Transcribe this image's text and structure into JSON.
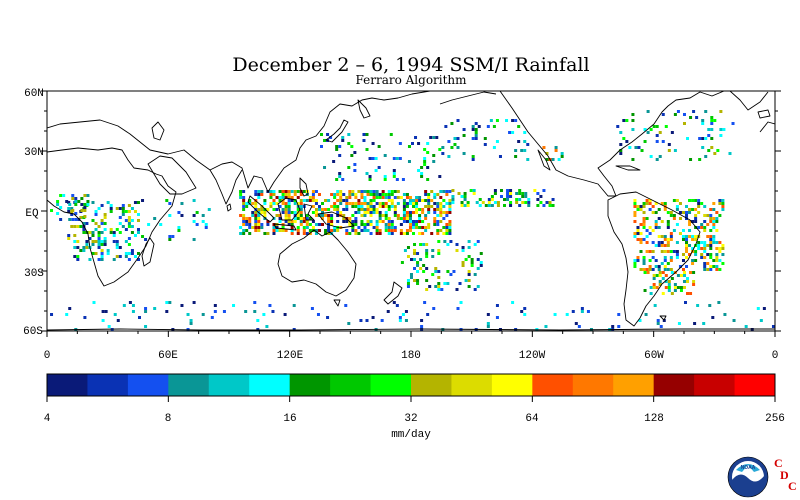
{
  "header": {
    "title": "December 2 – 6, 1994 SSM/I Rainfall",
    "subtitle": "Ferraro Algorithm"
  },
  "map": {
    "lat_labels": [
      "60N",
      "30N",
      "EQ",
      "30S",
      "60S"
    ],
    "lon_labels": [
      "0",
      "60E",
      "120E",
      "180",
      "120W",
      "60W",
      "0"
    ],
    "lat_range": [
      -60,
      60
    ],
    "lon_range": [
      0,
      360
    ],
    "field": "rainfall"
  },
  "colorbar": {
    "colors": [
      "#0a1a78",
      "#0a32b4",
      "#1450f0",
      "#0a9696",
      "#00c8c8",
      "#00ffff",
      "#009600",
      "#00c800",
      "#00ff00",
      "#b4b400",
      "#dcdc00",
      "#ffff00",
      "#ff5000",
      "#ff7800",
      "#ffa000",
      "#960000",
      "#c80000",
      "#ff0000"
    ],
    "tick_labels": [
      "4",
      "8",
      "16",
      "32",
      "64",
      "128",
      "256"
    ],
    "unit_label": "mm/day"
  },
  "logo": {
    "name": "noaa-logo",
    "text": "NOAA",
    "cdc_letters": [
      "C",
      "D",
      "C"
    ]
  }
}
